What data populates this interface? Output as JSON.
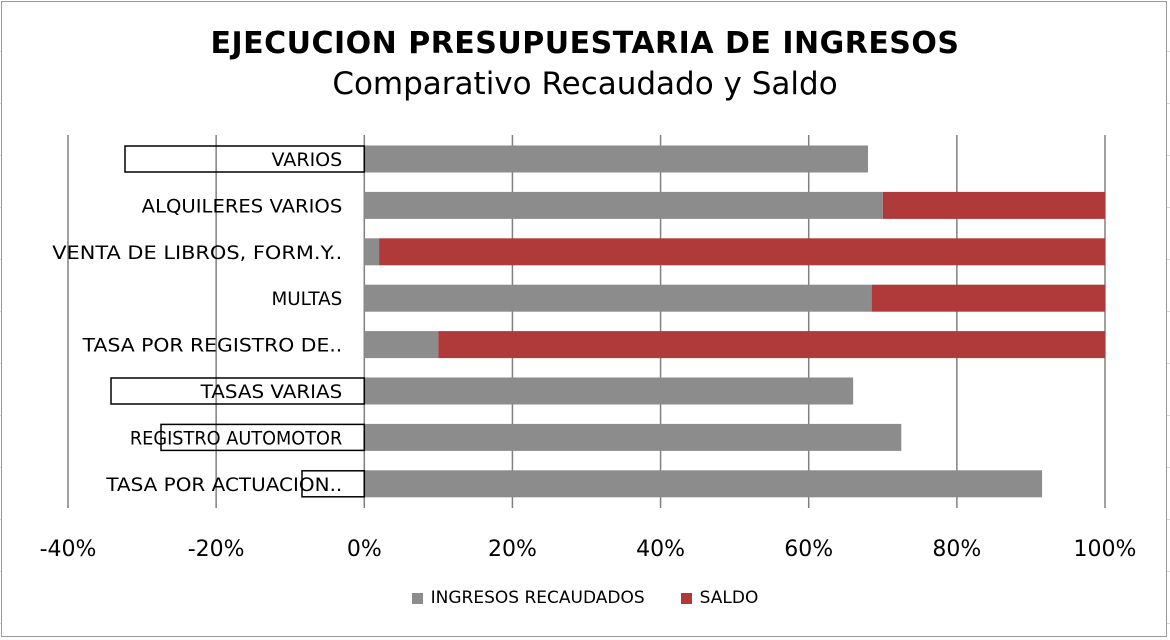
{
  "chart_data": {
    "type": "bar",
    "orientation": "horizontal",
    "stacked": true,
    "title": "EJECUCION PRESUPUESTARIA  DE INGRESOS",
    "subtitle": "Comparativo Recaudado y Saldo",
    "categories": [
      "VARIOS",
      "ALQUILERES VARIOS",
      "VENTA DE LIBROS, FORM.Y..",
      "MULTAS",
      "TASA POR REGISTRO DE..",
      "TASAS VARIAS",
      "REGISTRO AUTOMOTOR",
      "TASA POR ACTUACION.."
    ],
    "series": [
      {
        "name": "INGRESOS RECAUDADOS",
        "color": "#8c8c8c",
        "values": [
          68,
          70,
          2,
          68.5,
          10,
          66,
          72.5,
          91.5
        ]
      },
      {
        "name": "SALDO",
        "color": "#b03a3a",
        "values": [
          0,
          30,
          98,
          31.5,
          90,
          0,
          0,
          0
        ]
      }
    ],
    "xlim": [
      -40,
      100
    ],
    "xticks": [
      "-40%",
      "-20%",
      "0%",
      "20%",
      "40%",
      "60%",
      "80%",
      "100%"
    ],
    "grid": true,
    "legend": "bottom"
  }
}
